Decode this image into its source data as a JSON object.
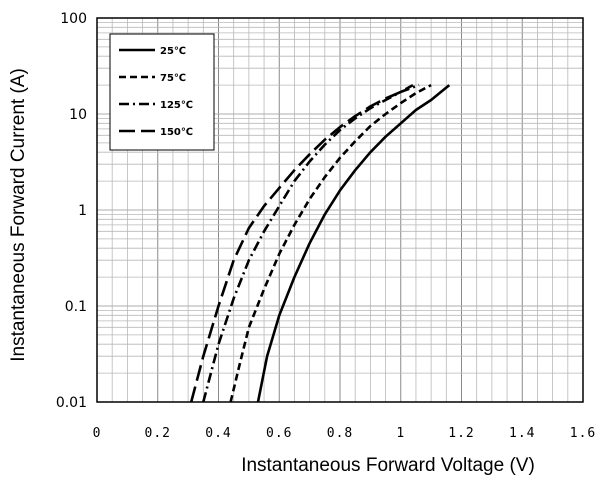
{
  "chart_data": {
    "type": "line",
    "title": "",
    "xlabel": "Instantaneous Forward Voltage (V)",
    "ylabel": "Instantaneous Forward Current (A)",
    "xlim": [
      0,
      1.6
    ],
    "ylim": [
      0.01,
      100
    ],
    "y_scale": "log",
    "grid": true,
    "legend_position": "top-left",
    "x_ticks": [
      "0",
      "0.2",
      "0.4",
      "0.6",
      "0.8",
      "1",
      "1.2",
      "1.4",
      "1.6"
    ],
    "y_ticks": [
      "0.01",
      "0.1",
      "1",
      "10",
      "100"
    ],
    "series": [
      {
        "name": "25℃",
        "style": "solid",
        "x": [
          0.53,
          0.56,
          0.6,
          0.65,
          0.7,
          0.75,
          0.8,
          0.85,
          0.9,
          0.95,
          1.0,
          1.05,
          1.1,
          1.16
        ],
        "y": [
          0.01,
          0.03,
          0.08,
          0.2,
          0.45,
          0.9,
          1.6,
          2.6,
          4.0,
          5.8,
          8.0,
          11,
          14,
          20
        ]
      },
      {
        "name": "75℃",
        "style": "dashed",
        "x": [
          0.44,
          0.47,
          0.5,
          0.55,
          0.6,
          0.65,
          0.7,
          0.75,
          0.8,
          0.85,
          0.9,
          0.95,
          1.0,
          1.05,
          1.1
        ],
        "y": [
          0.01,
          0.025,
          0.06,
          0.15,
          0.35,
          0.7,
          1.3,
          2.2,
          3.5,
          5.2,
          7.5,
          10,
          13,
          16.5,
          20
        ]
      },
      {
        "name": "125℃",
        "style": "dash-dot",
        "x": [
          0.35,
          0.4,
          0.45,
          0.5,
          0.55,
          0.6,
          0.65,
          0.7,
          0.75,
          0.8,
          0.85,
          0.9,
          0.95,
          1.0,
          1.06
        ],
        "y": [
          0.01,
          0.04,
          0.12,
          0.3,
          0.6,
          1.1,
          2.0,
          3.2,
          4.8,
          6.8,
          9.0,
          11.5,
          14,
          17,
          20
        ]
      },
      {
        "name": "150℃",
        "style": "long-dash",
        "x": [
          0.31,
          0.35,
          0.4,
          0.45,
          0.5,
          0.55,
          0.6,
          0.65,
          0.7,
          0.75,
          0.8,
          0.85,
          0.9,
          0.95,
          1.0,
          1.04
        ],
        "y": [
          0.01,
          0.03,
          0.1,
          0.3,
          0.65,
          1.1,
          1.7,
          2.6,
          3.8,
          5.4,
          7.3,
          9.5,
          12,
          14.5,
          17,
          20
        ]
      }
    ]
  }
}
